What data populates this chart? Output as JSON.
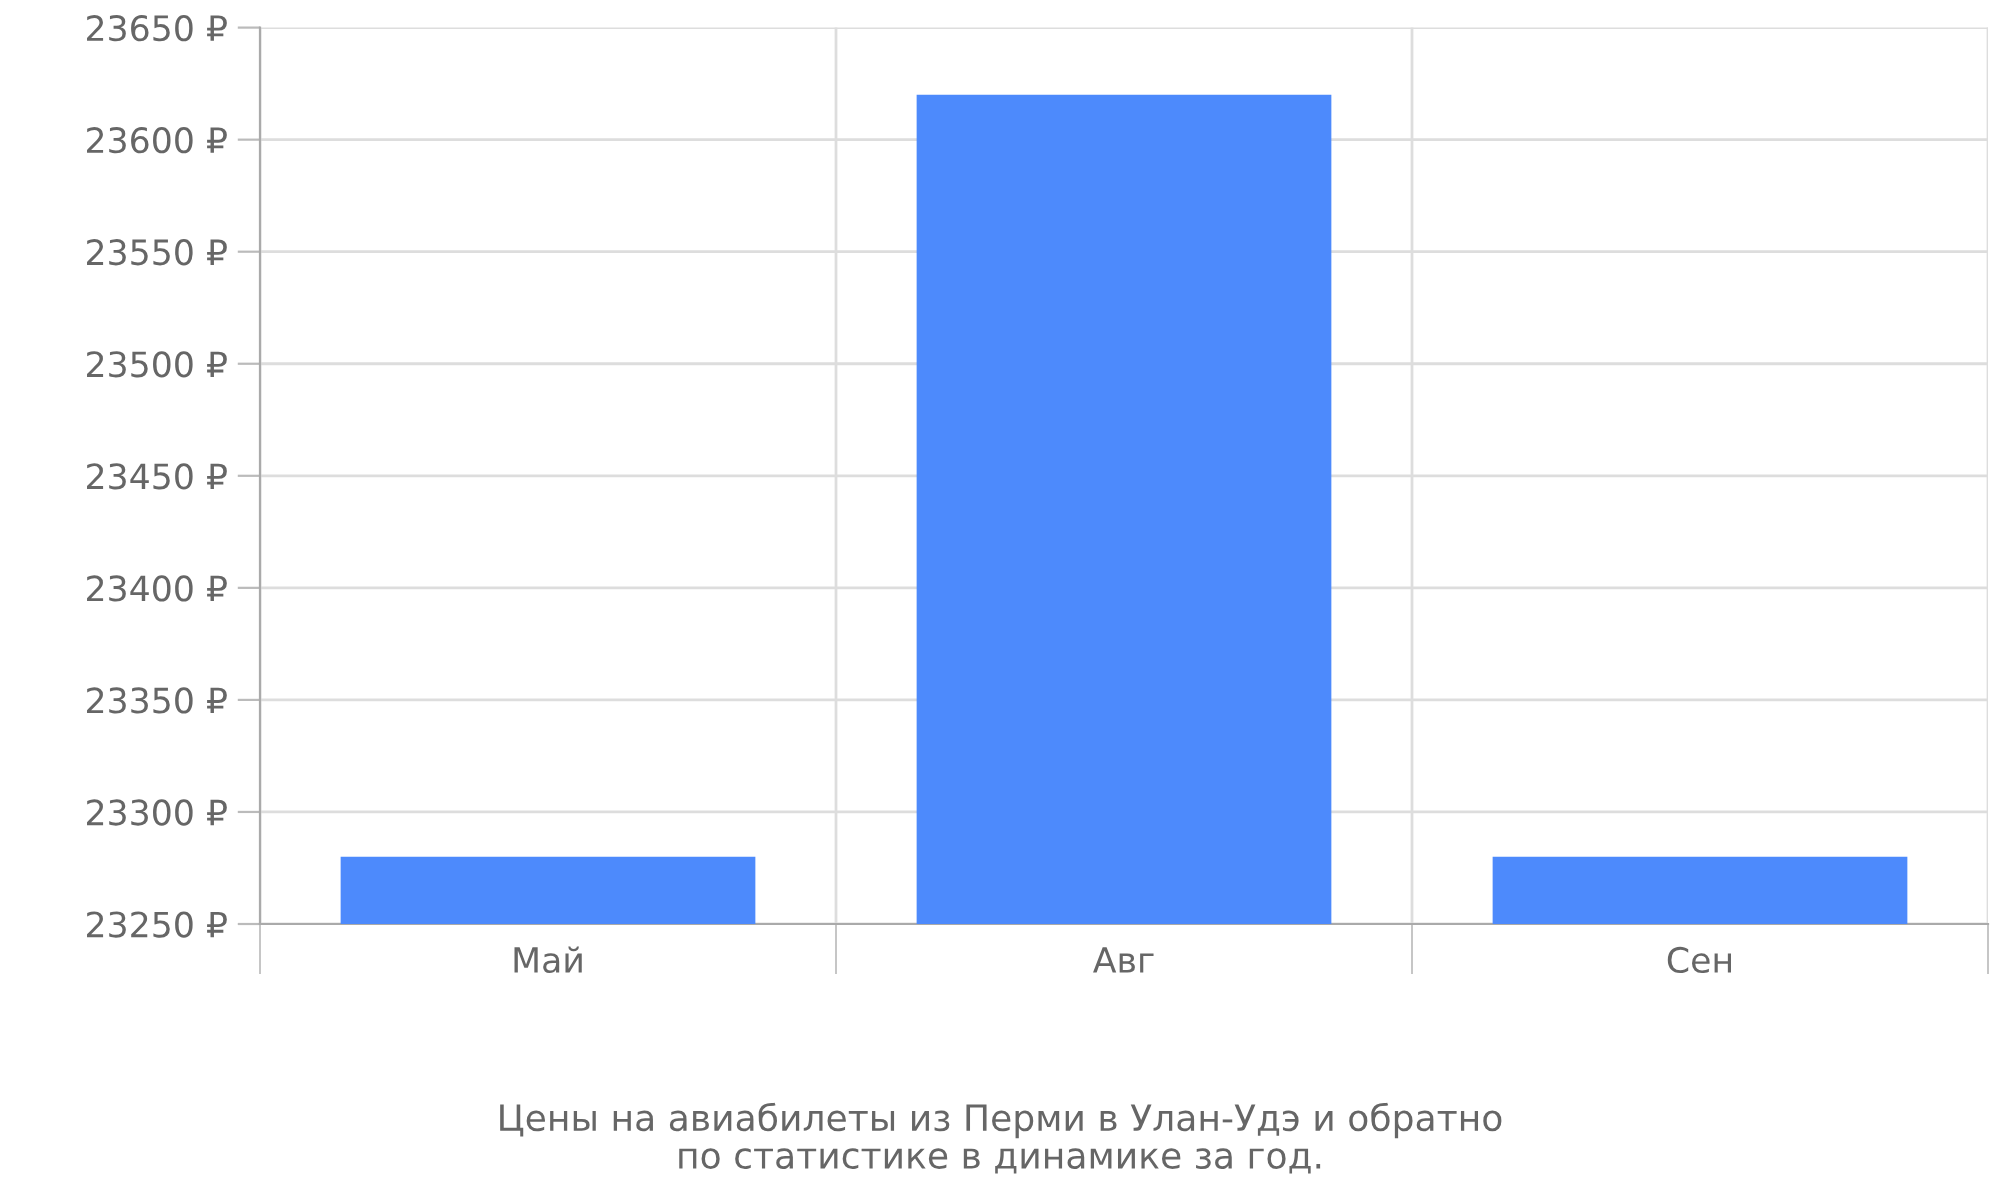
{
  "chart_data": {
    "type": "bar",
    "categories": [
      "Май",
      "Авг",
      "Сен"
    ],
    "values": [
      23280,
      23620,
      23280
    ],
    "color": "#4d8afc",
    "ylim": [
      23250,
      23650
    ],
    "yticks": [
      {
        "value": 23250,
        "label": "23250 ₽"
      },
      {
        "value": 23300,
        "label": "23300 ₽"
      },
      {
        "value": 23350,
        "label": "23350 ₽"
      },
      {
        "value": 23400,
        "label": "23400 ₽"
      },
      {
        "value": 23450,
        "label": "23450 ₽"
      },
      {
        "value": 23500,
        "label": "23500 ₽"
      },
      {
        "value": 23550,
        "label": "23550 ₽"
      },
      {
        "value": 23600,
        "label": "23600 ₽"
      },
      {
        "value": 23650,
        "label": "23650 ₽"
      }
    ],
    "grid": true,
    "annotations": [
      "Цены на авиабилеты из Перми в Улан-Удэ и обратно\nпо статистике в динамике за год."
    ]
  }
}
